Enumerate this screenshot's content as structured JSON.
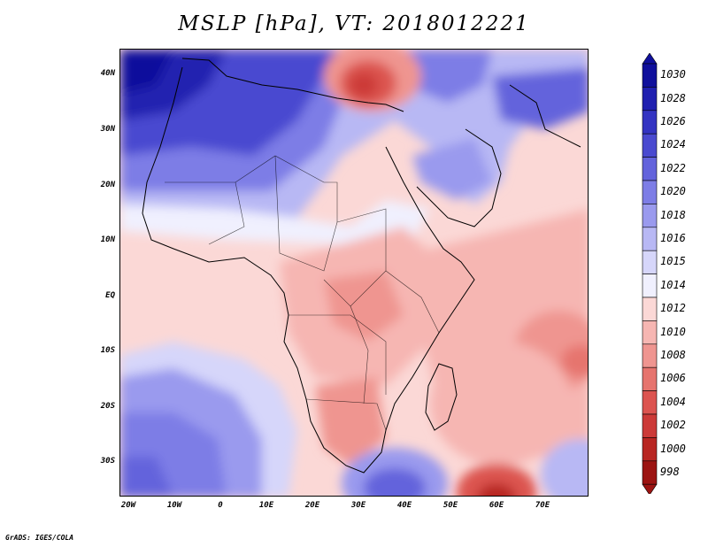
{
  "title": "MSLP [hPa], VT: 2018012221",
  "latitude_labels": [
    "40N",
    "30N",
    "20N",
    "10N",
    "EQ",
    "10S",
    "20S",
    "30S"
  ],
  "longitude_labels": [
    "20W",
    "10W",
    "0",
    "10E",
    "20E",
    "30E",
    "40E",
    "50E",
    "60E",
    "70E"
  ],
  "colorbar": {
    "levels": [
      "1030",
      "1028",
      "1026",
      "1024",
      "1022",
      "1020",
      "1018",
      "1016",
      "1015",
      "1014",
      "1012",
      "1010",
      "1008",
      "1006",
      "1004",
      "1002",
      "1000",
      "998"
    ],
    "colors": [
      "#10109c",
      "#2020b0",
      "#3434c2",
      "#4a4ad0",
      "#6363dc",
      "#7d7de6",
      "#9a9aee",
      "#b8b8f4",
      "#d6d6fa",
      "#f0f0fe",
      "#fbd8d6",
      "#f6b6b2",
      "#ef9590",
      "#e6746e",
      "#dc5450",
      "#cc3a38",
      "#b82622",
      "#9c1412"
    ]
  },
  "credit": "GrADS: IGES/COLA"
}
